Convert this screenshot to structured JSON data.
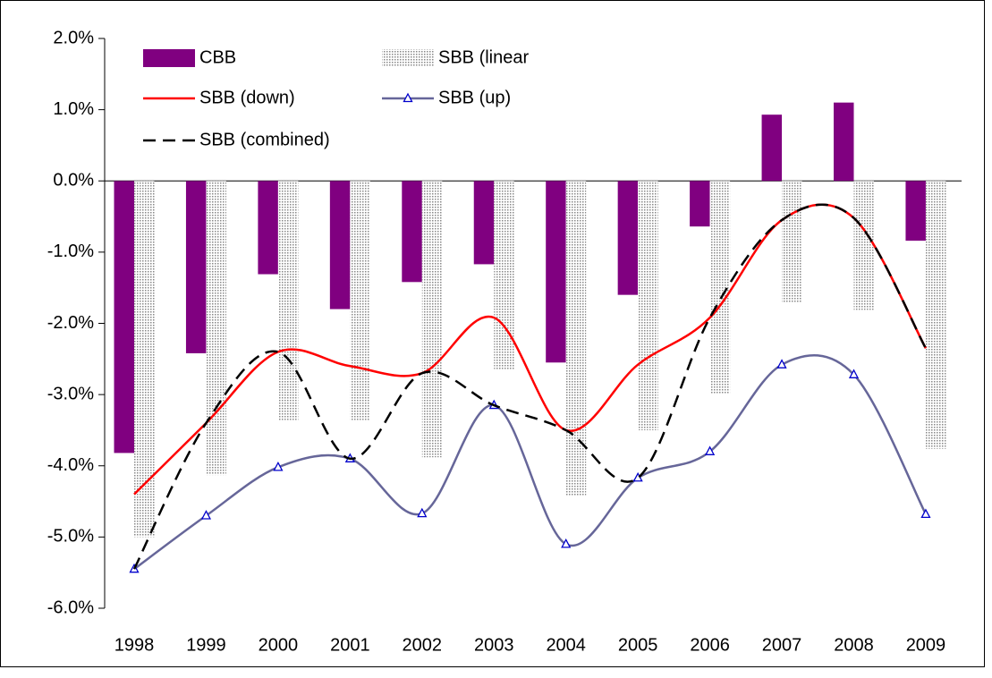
{
  "chart_data": {
    "type": "bar",
    "categories": [
      "1998",
      "1999",
      "2000",
      "2001",
      "2002",
      "2003",
      "2004",
      "2005",
      "2006",
      "2007",
      "2008",
      "2009"
    ],
    "series": [
      {
        "name": "CBB",
        "type": "bar",
        "color": "#800080",
        "values": [
          -3.82,
          -2.42,
          -1.31,
          -1.8,
          -1.42,
          -1.17,
          -2.55,
          -1.6,
          -0.64,
          0.93,
          1.1,
          -0.84
        ]
      },
      {
        "name": "SBB (linear",
        "type": "bar",
        "color": "#b0b0b0",
        "pattern": "dots",
        "values": [
          -5.0,
          -4.13,
          -3.37,
          -3.37,
          -3.88,
          -2.65,
          -4.42,
          -3.5,
          -2.98,
          -1.71,
          -1.81,
          -3.76
        ]
      },
      {
        "name": "SBB (down)",
        "type": "line",
        "color": "#ff0000",
        "values": [
          -4.4,
          -3.4,
          -2.4,
          -2.6,
          -2.7,
          -1.92,
          -3.5,
          -2.58,
          -1.92,
          -0.55,
          -0.52,
          -2.35
        ]
      },
      {
        "name": "SBB (up)",
        "type": "line",
        "color": "#666699",
        "marker": "triangle",
        "marker_color": "#0000cc",
        "values": [
          -5.45,
          -4.7,
          -4.02,
          -3.9,
          -4.67,
          -3.15,
          -5.1,
          -4.17,
          -3.8,
          -2.58,
          -2.72,
          -4.68
        ]
      },
      {
        "name": "SBB (combined)",
        "type": "line",
        "color": "#000000",
        "dashed": true,
        "values": [
          -5.45,
          -3.4,
          -2.4,
          -3.9,
          -2.7,
          -3.15,
          -3.5,
          -4.17,
          -1.92,
          -0.55,
          -0.52,
          -2.35
        ]
      }
    ],
    "ylim": [
      -6,
      2
    ],
    "yticks": [
      {
        "value": -6,
        "label": "-6.0%"
      },
      {
        "value": -5,
        "label": "-5.0%"
      },
      {
        "value": -4,
        "label": "-4.0%"
      },
      {
        "value": -3,
        "label": "-3.0%"
      },
      {
        "value": -2,
        "label": "-2.0%"
      },
      {
        "value": -1,
        "label": "-1.0%"
      },
      {
        "value": 0,
        "label": "0.0%"
      },
      {
        "value": 1,
        "label": "1.0%"
      },
      {
        "value": 2,
        "label": "2.0%"
      }
    ],
    "grid": false,
    "legend": "top-left"
  }
}
